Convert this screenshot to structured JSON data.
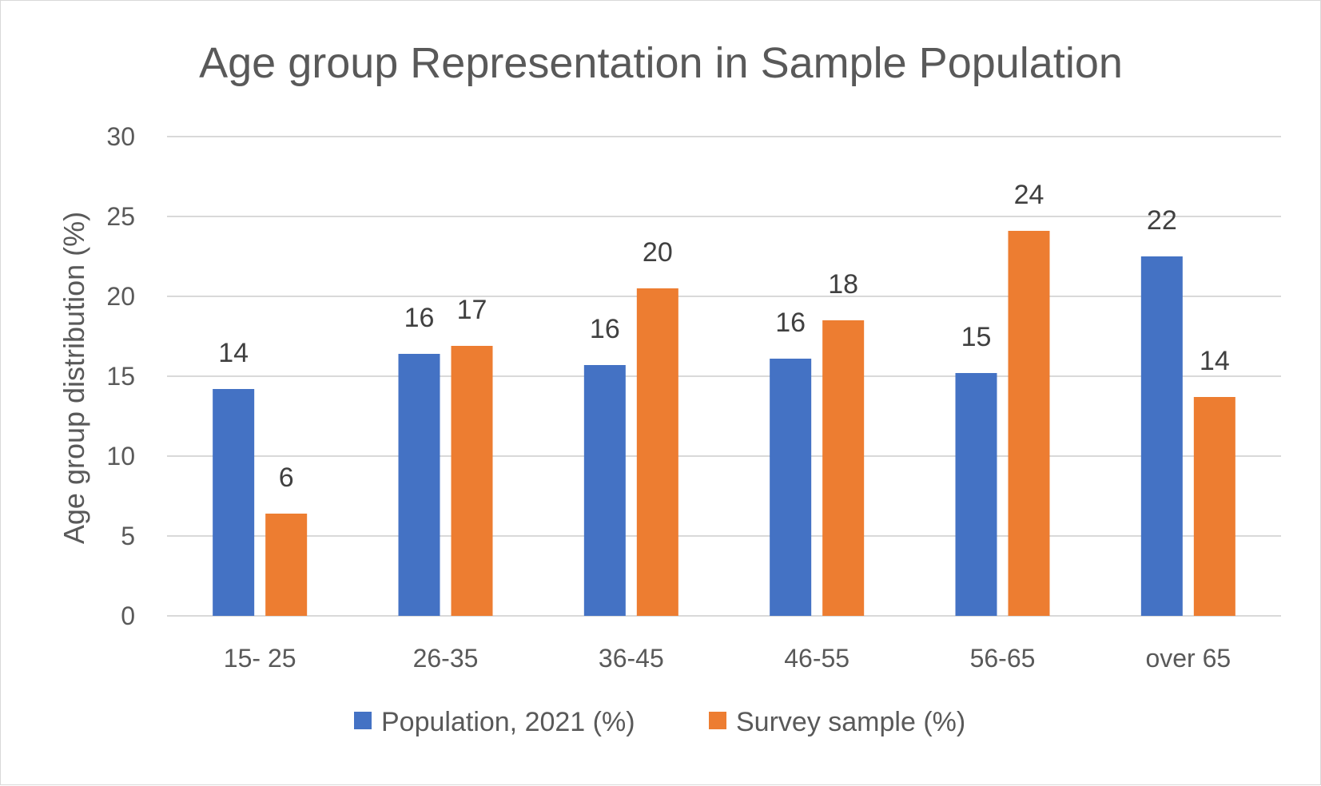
{
  "chart_data": {
    "type": "bar",
    "title": "Age group Representation in Sample Population",
    "xlabel": "",
    "ylabel": "Age group distribution (%)",
    "ylim": [
      0,
      30
    ],
    "yticks": [
      0,
      5,
      10,
      15,
      20,
      25,
      30
    ],
    "grid": true,
    "legend_position": "bottom",
    "categories": [
      "15- 25",
      "26-35",
      "36-45",
      "46-55",
      "56-65",
      "over 65"
    ],
    "series": [
      {
        "name": "Population, 2021 (%)",
        "color": "#4472c4",
        "values": [
          14.2,
          16.4,
          15.7,
          16.1,
          15.2,
          22.5
        ],
        "labels": [
          "14",
          "16",
          "16",
          "16",
          "15",
          "22"
        ]
      },
      {
        "name": "Survey sample (%)",
        "color": "#ed7d31",
        "values": [
          6.4,
          16.9,
          20.5,
          18.5,
          24.1,
          13.7
        ],
        "labels": [
          "6",
          "17",
          "20",
          "18",
          "24",
          "14"
        ]
      }
    ]
  }
}
